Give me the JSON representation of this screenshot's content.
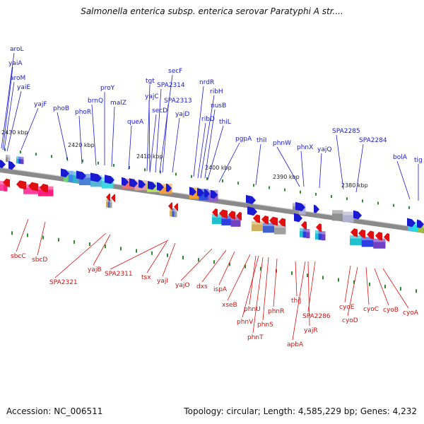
{
  "title": "Salmonella enterica subsp. enterica serovar Paratyphi A str....",
  "footer": {
    "accession": "Accession: NC_006511",
    "topology": "Topology: circular; Length: 4,585,229 bp; Genes: 4,232"
  },
  "colors": {
    "forward_gene": "#1a1ad0",
    "reverse_gene": "#e01010",
    "backbone": "#888888",
    "tick": "#2e8b2e"
  },
  "scale_labels": [
    "2430 kbp",
    "2420 kbp",
    "2410 kbp",
    "2400 kbp",
    "2390 kbp",
    "2380 kbp"
  ],
  "forward_genes": [
    "aroL",
    "yaiA",
    "aroM",
    "yaiE",
    "yajF",
    "phoB",
    "phoR",
    "brnQ",
    "proY",
    "malZ",
    "queA",
    "tgt",
    "yajC",
    "secF",
    "SPA2314",
    "secD",
    "SPA2313",
    "yajD",
    "nrdR",
    "ribH",
    "nusB",
    "ribD",
    "thiL",
    "pgpA",
    "thiI",
    "phnW",
    "phnX",
    "yajQ",
    "SPA2285",
    "SPA2284",
    "bolA",
    "tig"
  ],
  "reverse_genes": [
    "sbcC",
    "sbcD",
    "SPA2321",
    "yajB",
    "SPA2311",
    "tsx",
    "yajI",
    "yajO",
    "dxs",
    "ispA",
    "xseB",
    "phnU",
    "phnV",
    "phnT",
    "phnS",
    "phnR",
    "thiJ",
    "apbA",
    "SPA2286",
    "yajR",
    "cyoE",
    "cyoD",
    "cyoC",
    "cyoB",
    "cyoA"
  ]
}
